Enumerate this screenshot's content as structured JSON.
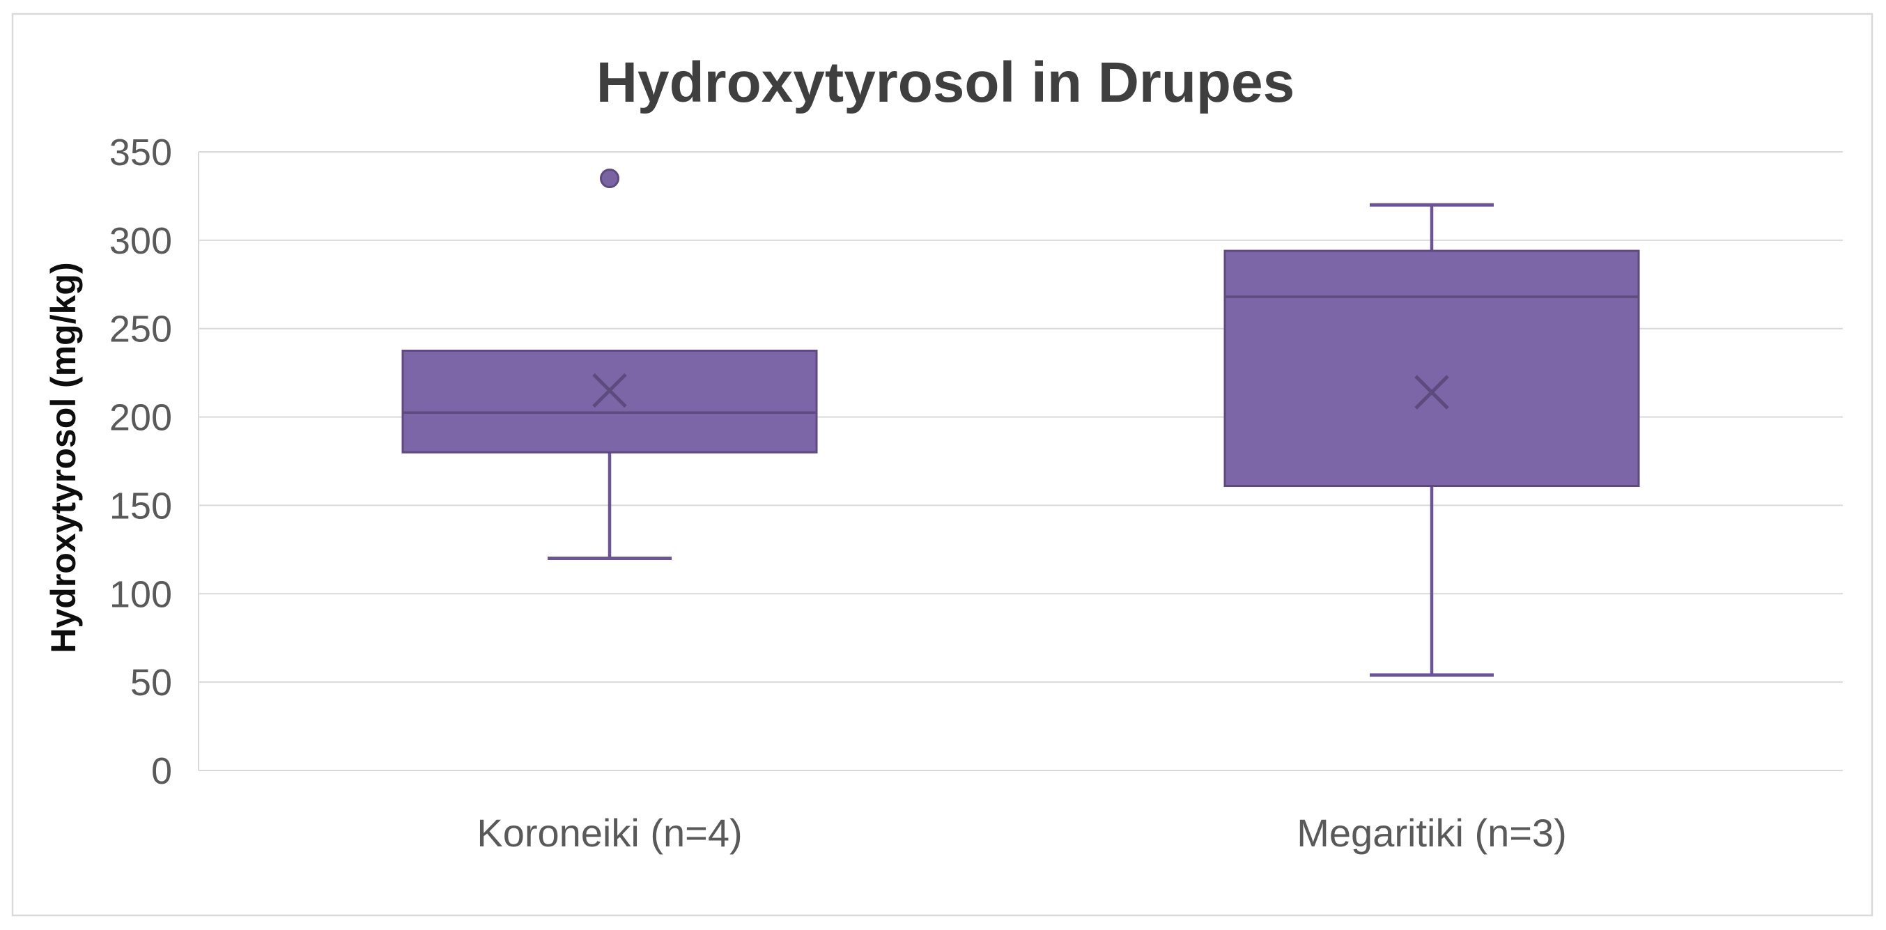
{
  "chart_data": {
    "type": "box",
    "title": "Hydroxytyrosol in Drupes",
    "ylabel": "Hydroxytyrosol (mg/kg)",
    "xlabel": "",
    "ylim": [
      0,
      350
    ],
    "yticks": [
      0,
      50,
      100,
      150,
      200,
      250,
      300,
      350
    ],
    "categories": [
      "Koroneiki (n=4)",
      "Megaritiki (n=3)"
    ],
    "series": [
      {
        "category": "Koroneiki (n=4)",
        "whisker_low": 120,
        "q1": 180,
        "median": 202.5,
        "q3": 237.5,
        "whisker_high": 237.5,
        "mean": 215,
        "outliers": [
          335
        ]
      },
      {
        "category": "Megaritiki (n=3)",
        "whisker_low": 54,
        "q1": 161,
        "median": 268,
        "q3": 294,
        "whisker_high": 320,
        "mean": 214,
        "outliers": []
      }
    ],
    "grid": "horizontal",
    "legend_position": "none",
    "colors": {
      "box_fill": "#7C66A7",
      "box_border": "#5E4A7E",
      "whisker": "#6A5494",
      "median": "#5E4A7E",
      "mean_marker": "#5D4B7E",
      "outlier_fill": "#7A63A2",
      "outlier_border": "#5E4A7E",
      "gridline": "#D9D9D9",
      "axis_line": "#D9D9D9",
      "chart_border": "#D9D9D9",
      "tick_label": "#595959",
      "category_label": "#595959",
      "title": "#3F3F3F",
      "ylabel_color": "#0D0D0D",
      "background": "#FFFFFF"
    }
  }
}
